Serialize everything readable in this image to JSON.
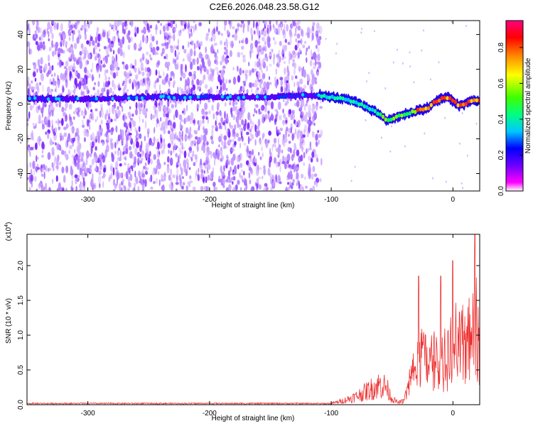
{
  "title": "C2E6.2026.048.23.58.G12",
  "chart_data": [
    {
      "type": "heatmap",
      "name": "spectrogram",
      "xlabel": "Height of straight line (km)",
      "ylabel": "Frequency (Hz)",
      "xlim": [
        -350,
        22
      ],
      "ylim": [
        -50,
        48
      ],
      "xticks": [
        -300,
        -200,
        -100,
        0
      ],
      "xtick_labels": [
        "-300",
        "-200",
        "-100",
        "0"
      ],
      "yticks": [
        40,
        20,
        0,
        -20,
        -40
      ],
      "ytick_labels": [
        "40",
        "20",
        "0",
        "-20",
        "-40"
      ],
      "colorbar": {
        "label": "Normalized spectral amplitude",
        "range": [
          0,
          0.95
        ],
        "ticks": [
          0.0,
          0.2,
          0.4,
          0.6,
          0.8
        ],
        "tick_labels": [
          "0.0",
          "0.2",
          "0.4",
          "0.6",
          "0.8"
        ],
        "colors": [
          "#ffffff",
          "#ff00ff",
          "#6a00ff",
          "#0000ff",
          "#00c8ff",
          "#00ff80",
          "#40ff00",
          "#ffff00",
          "#ff8000",
          "#ff0000",
          "#ff0080"
        ]
      },
      "ridge": {
        "x": [
          -350,
          -300,
          -250,
          -200,
          -150,
          -120,
          -110,
          -100,
          -90,
          -80,
          -70,
          -60,
          -55,
          -50,
          -45,
          -40,
          -35,
          -30,
          -25,
          -20,
          -15,
          -10,
          -5,
          0,
          5,
          10,
          15,
          20
        ],
        "y": [
          3,
          3,
          4,
          4,
          4,
          5,
          5,
          4,
          3,
          1,
          -2,
          -6,
          -9,
          -9,
          -7,
          -6,
          -5,
          -4,
          -3,
          -2,
          1,
          3,
          4,
          2,
          -1,
          0,
          2,
          2
        ]
      }
    },
    {
      "type": "line",
      "name": "snr",
      "xlabel": "Height of straight line (km)",
      "ylabel": "SNR (10 * v/v)",
      "scale_label": "(x10",
      "scale_exponent": "4",
      "scale_suffix": ")",
      "xlim": [
        -350,
        22
      ],
      "ylim": [
        0,
        2.45
      ],
      "xticks": [
        -300,
        -200,
        -100,
        0
      ],
      "xtick_labels": [
        "-300",
        "-200",
        "-100",
        "0"
      ],
      "yticks": [
        0.0,
        0.5,
        1.0,
        1.5,
        2.0
      ],
      "ytick_labels": [
        "0.0",
        "0.5",
        "1.0",
        "1.5",
        "2.0"
      ],
      "series_color": "#ee3333",
      "envelope": {
        "x": [
          -350,
          -120,
          -100,
          -90,
          -80,
          -70,
          -60,
          -55,
          -50,
          -45,
          -40,
          -35,
          -30,
          -25,
          -20,
          -15,
          -10,
          -5,
          0,
          5,
          10,
          15,
          20
        ],
        "y": [
          0.02,
          0.02,
          0.03,
          0.1,
          0.2,
          0.35,
          0.5,
          0.45,
          0.15,
          0.05,
          0.1,
          0.6,
          0.9,
          1.2,
          0.95,
          1.0,
          1.1,
          1.05,
          1.3,
          1.4,
          1.5,
          1.6,
          1.8
        ]
      },
      "peaks": [
        {
          "x": -28,
          "y": 1.85
        },
        {
          "x": -10,
          "y": 1.85
        },
        {
          "x": 0,
          "y": 2.07
        },
        {
          "x": 18,
          "y": 2.45
        }
      ]
    }
  ]
}
